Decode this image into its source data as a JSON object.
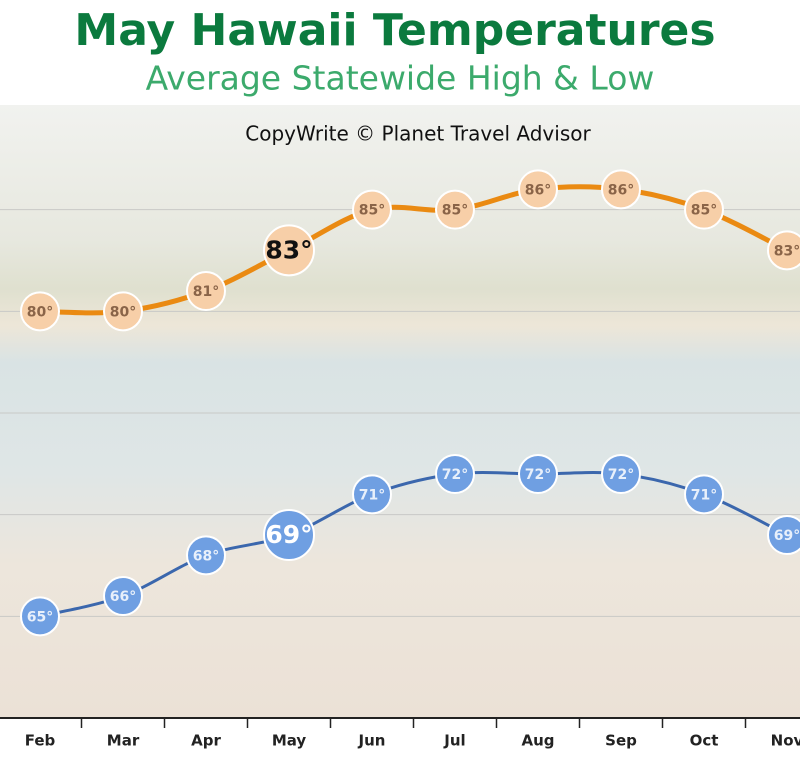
{
  "chart_data": {
    "type": "line",
    "title": "May Hawaii Temperatures",
    "subtitle": "Average Statewide High & Low",
    "annotation": "CopyWrite © Planet Travel Advisor",
    "categories": [
      "Feb",
      "Mar",
      "Apr",
      "May",
      "Jun",
      "Jul",
      "Aug",
      "Sep",
      "Oct",
      "Nov"
    ],
    "highlight": "May",
    "series": [
      {
        "name": "High",
        "color": "#ea8a12",
        "values": [
          80,
          80,
          81,
          83,
          85,
          85,
          86,
          86,
          85,
          83
        ],
        "value_labels": [
          "80°",
          "80°",
          "81°",
          "83°",
          "85°",
          "85°",
          "86°",
          "86°",
          "85°",
          "83°"
        ]
      },
      {
        "name": "Low",
        "color": "#3b67ad",
        "values": [
          65,
          66,
          68,
          69,
          71,
          72,
          72,
          72,
          71,
          69
        ],
        "value_labels": [
          "65°",
          "66°",
          "68°",
          "69°",
          "71°",
          "72°",
          "72°",
          "72°",
          "71°",
          "69°"
        ]
      }
    ],
    "ylim": [
      60,
      90
    ],
    "yticks": [
      65,
      70,
      75,
      80,
      85
    ],
    "grid": true
  }
}
